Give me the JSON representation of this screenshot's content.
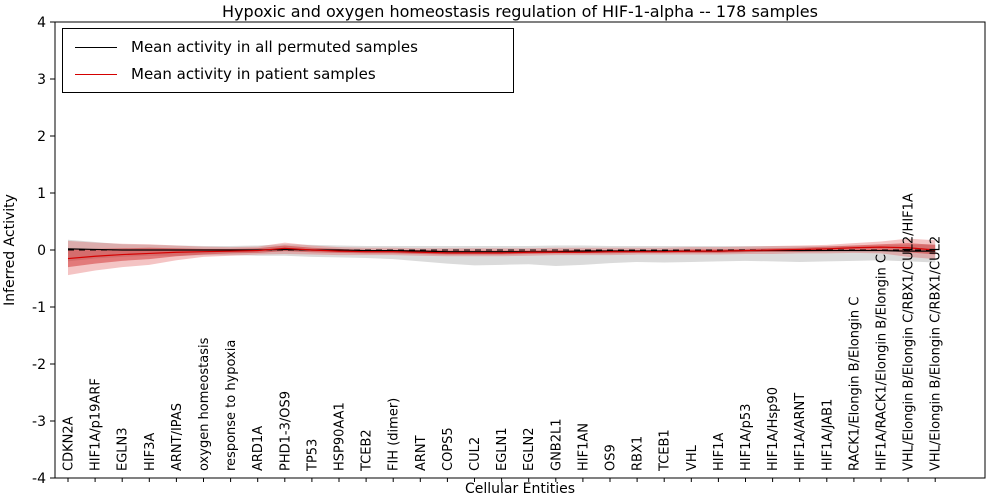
{
  "title": "Hypoxic and oxygen homeostasis regulation of HIF-1-alpha -- 178 samples",
  "axes": {
    "x_label": "Cellular Entities",
    "y_label": "Inferred Activity",
    "y_ticks": [
      "-4",
      "-3",
      "-2",
      "-1",
      "0",
      "1",
      "2",
      "3",
      "4"
    ]
  },
  "legend": {
    "position": "upper left",
    "items": [
      {
        "label": "Mean activity in all permuted samples",
        "color": "#000000"
      },
      {
        "label": "Mean activity in patient samples",
        "color": "#d40000"
      }
    ]
  },
  "chart_data": {
    "type": "line",
    "title": "Hypoxic and oxygen homeostasis regulation of HIF-1-alpha -- 178 samples",
    "xlabel": "Cellular Entities",
    "ylabel": "Inferred Activity",
    "ylim": [
      -4,
      4
    ],
    "grid": false,
    "legend_position": "upper left",
    "categories": [
      "CDKN2A",
      "HIF1A/p19ARF",
      "EGLN3",
      "HIF3A",
      "ARNT/IPAS",
      "oxygen homeostasis",
      "response to hypoxia",
      "ARD1A",
      "PHD1-3/OS9",
      "TP53",
      "HSP90AA1",
      "TCEB2",
      "FIH (dimer)",
      "ARNT",
      "COPS5",
      "CUL2",
      "EGLN1",
      "EGLN2",
      "GNB2L1",
      "HIF1AN",
      "OS9",
      "RBX1",
      "TCEB1",
      "VHL",
      "HIF1A",
      "HIF1A/p53",
      "HIF1A/Hsp90",
      "HIF1A/ARNT",
      "HIF1A/JAB1",
      "RACK1/Elongin B/Elongin C",
      "HIF1A/RACK1/Elongin B/Elongin C",
      "VHL/Elongin B/Elongin C/RBX1/CUL2/HIF1A",
      "VHL/Elongin B/Elongin C/RBX1/CUL2"
    ],
    "series": [
      {
        "name": "Mean activity in all permuted samples",
        "color": "#000000",
        "style": "solid",
        "values": [
          0.02,
          0.01,
          0.0,
          0.0,
          0.0,
          0.0,
          0.0,
          0.0,
          0.01,
          0.0,
          0.0,
          -0.01,
          -0.01,
          -0.02,
          -0.03,
          -0.03,
          -0.03,
          -0.03,
          -0.03,
          -0.02,
          -0.02,
          -0.02,
          -0.02,
          -0.02,
          -0.02,
          -0.01,
          -0.01,
          -0.01,
          -0.01,
          -0.01,
          -0.01,
          -0.02,
          -0.02
        ]
      },
      {
        "name": "Mean activity in patient samples",
        "color": "#d40000",
        "style": "solid",
        "values": [
          -0.15,
          -0.11,
          -0.08,
          -0.06,
          -0.04,
          -0.03,
          -0.02,
          -0.01,
          0.03,
          0.0,
          -0.02,
          -0.03,
          -0.03,
          -0.04,
          -0.05,
          -0.05,
          -0.05,
          -0.04,
          -0.04,
          -0.04,
          -0.03,
          -0.03,
          -0.03,
          -0.02,
          -0.02,
          -0.01,
          0.0,
          0.01,
          0.02,
          0.04,
          0.05,
          0.04,
          0.0
        ]
      }
    ],
    "zero_reference_line": {
      "value": 0,
      "color": "#000000",
      "style": "dashed"
    },
    "bands": [
      {
        "name": "permuted-range",
        "color": "#999999",
        "opacity": 0.35,
        "upper": [
          0.18,
          0.14,
          0.1,
          0.09,
          0.08,
          0.07,
          0.07,
          0.08,
          0.1,
          0.09,
          0.08,
          0.07,
          0.07,
          0.07,
          0.07,
          0.07,
          0.07,
          0.07,
          0.08,
          0.08,
          0.07,
          0.07,
          0.07,
          0.07,
          0.07,
          0.07,
          0.07,
          0.07,
          0.07,
          0.08,
          0.08,
          0.09,
          0.1
        ],
        "lower": [
          -0.2,
          -0.15,
          -0.12,
          -0.1,
          -0.1,
          -0.09,
          -0.09,
          -0.1,
          -0.1,
          -0.12,
          -0.13,
          -0.14,
          -0.16,
          -0.2,
          -0.24,
          -0.27,
          -0.26,
          -0.25,
          -0.28,
          -0.26,
          -0.23,
          -0.21,
          -0.22,
          -0.21,
          -0.2,
          -0.19,
          -0.2,
          -0.21,
          -0.2,
          -0.19,
          -0.18,
          -0.2,
          -0.22
        ]
      },
      {
        "name": "patient-range-outer",
        "color": "#e05555",
        "opacity": 0.35,
        "upper": [
          0.16,
          0.13,
          0.11,
          0.1,
          0.08,
          0.06,
          0.05,
          0.06,
          0.13,
          0.08,
          0.05,
          0.04,
          0.04,
          0.03,
          0.03,
          0.03,
          0.03,
          0.03,
          0.04,
          0.04,
          0.04,
          0.04,
          0.04,
          0.05,
          0.05,
          0.06,
          0.07,
          0.08,
          0.09,
          0.12,
          0.15,
          0.2,
          0.17
        ],
        "lower": [
          -0.44,
          -0.36,
          -0.3,
          -0.26,
          -0.18,
          -0.12,
          -0.1,
          -0.08,
          -0.07,
          -0.08,
          -0.09,
          -0.09,
          -0.09,
          -0.1,
          -0.11,
          -0.11,
          -0.11,
          -0.1,
          -0.09,
          -0.09,
          -0.09,
          -0.08,
          -0.08,
          -0.08,
          -0.08,
          -0.07,
          -0.07,
          -0.06,
          -0.06,
          -0.05,
          -0.06,
          -0.12,
          -0.16
        ]
      },
      {
        "name": "patient-range-inner",
        "color": "#cc2222",
        "opacity": 0.45,
        "upper": [
          0.0,
          0.02,
          0.03,
          0.04,
          0.03,
          0.02,
          0.02,
          0.03,
          0.08,
          0.04,
          0.02,
          0.0,
          0.0,
          0.0,
          -0.01,
          -0.01,
          -0.01,
          -0.01,
          0.0,
          0.0,
          0.0,
          0.0,
          0.0,
          0.01,
          0.01,
          0.02,
          0.03,
          0.04,
          0.06,
          0.08,
          0.1,
          0.12,
          0.09
        ],
        "lower": [
          -0.3,
          -0.24,
          -0.19,
          -0.16,
          -0.11,
          -0.08,
          -0.06,
          -0.05,
          -0.02,
          -0.04,
          -0.05,
          -0.06,
          -0.06,
          -0.07,
          -0.08,
          -0.08,
          -0.08,
          -0.07,
          -0.06,
          -0.06,
          -0.06,
          -0.05,
          -0.05,
          -0.05,
          -0.05,
          -0.04,
          -0.03,
          -0.03,
          -0.02,
          -0.01,
          -0.01,
          -0.04,
          -0.08
        ]
      }
    ]
  }
}
